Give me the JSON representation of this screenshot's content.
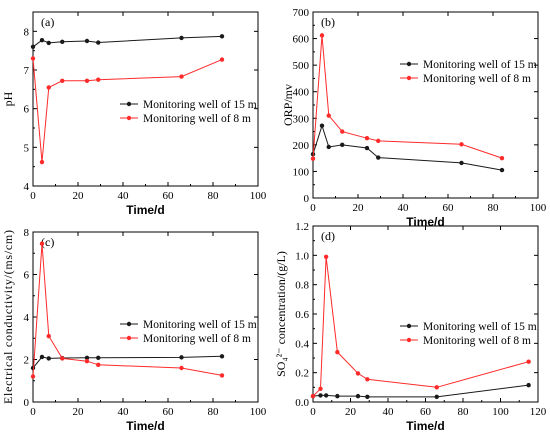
{
  "series_colors": {
    "s15": "#1a1a1a",
    "s8": "#ff2a2a"
  },
  "chart_data": [
    {
      "type": "line",
      "panel_label": "(a)",
      "xlabel": "Time/d",
      "ylabel": "pH",
      "xlim": [
        0,
        100
      ],
      "ylim": [
        4,
        8.5
      ],
      "xticks": [
        0,
        20,
        40,
        60,
        80,
        100
      ],
      "yticks": [
        4,
        5,
        6,
        7,
        8
      ],
      "legend_position": "center-right",
      "series": [
        {
          "name": "Monitoring well of 15 m",
          "x": [
            0,
            4,
            7,
            13,
            24,
            29,
            66,
            84
          ],
          "y": [
            7.6,
            7.77,
            7.7,
            7.73,
            7.75,
            7.71,
            7.83,
            7.87
          ]
        },
        {
          "name": "Monitoring well of 8 m",
          "x": [
            0,
            4,
            7,
            13,
            24,
            29,
            66,
            84
          ],
          "y": [
            7.3,
            4.62,
            6.55,
            6.72,
            6.72,
            6.75,
            6.83,
            7.27
          ]
        }
      ]
    },
    {
      "type": "line",
      "panel_label": "(b)",
      "xlabel": "Time/d",
      "ylabel": "ORP/mv",
      "xlim": [
        0,
        100
      ],
      "ylim": [
        0,
        700
      ],
      "xticks": [
        0,
        20,
        40,
        60,
        80,
        100
      ],
      "yticks": [
        0,
        100,
        200,
        300,
        400,
        500,
        600,
        700
      ],
      "legend_position": "top-right",
      "series": [
        {
          "name": "Monitoring well of 15 m",
          "x": [
            0,
            4,
            7,
            13,
            24,
            29,
            66,
            84
          ],
          "y": [
            165,
            272,
            192,
            200,
            188,
            152,
            132,
            105
          ]
        },
        {
          "name": "Monitoring well of 8 m",
          "x": [
            0,
            4,
            7,
            13,
            24,
            29,
            66,
            84
          ],
          "y": [
            148,
            612,
            310,
            250,
            225,
            215,
            202,
            150
          ]
        }
      ]
    },
    {
      "type": "line",
      "panel_label": "(c)",
      "xlabel": "Time/d",
      "ylabel": "Electrical conductivity/(ms/cm)",
      "xlim": [
        0,
        100
      ],
      "ylim": [
        0,
        8
      ],
      "xticks": [
        0,
        20,
        40,
        60,
        80,
        100
      ],
      "yticks": [
        0,
        2,
        4,
        6,
        8
      ],
      "legend_position": "center-right",
      "series": [
        {
          "name": "Monitoring well of 15 m",
          "x": [
            0,
            4,
            7,
            13,
            24,
            29,
            66,
            84
          ],
          "y": [
            1.6,
            2.12,
            2.05,
            2.07,
            2.08,
            2.08,
            2.1,
            2.15
          ]
        },
        {
          "name": "Monitoring well of 8 m",
          "x": [
            0,
            4,
            7,
            13,
            24,
            29,
            66,
            84
          ],
          "y": [
            1.2,
            7.45,
            3.1,
            2.05,
            1.92,
            1.75,
            1.6,
            1.25
          ]
        }
      ]
    },
    {
      "type": "line",
      "panel_label": "(d)",
      "xlabel": "Time/d",
      "ylabel": "SO₄²⁻ concentration/(g/L)",
      "xlim": [
        0,
        120
      ],
      "ylim": [
        0,
        1.2
      ],
      "xticks": [
        0,
        20,
        40,
        60,
        80,
        100,
        120
      ],
      "yticks": [
        0.0,
        0.2,
        0.4,
        0.6,
        0.8,
        1.0,
        1.2
      ],
      "legend_position": "center-right",
      "series": [
        {
          "name": "Monitoring well of 15 m",
          "x": [
            0,
            4,
            7,
            13,
            24,
            29,
            66,
            115
          ],
          "y": [
            0.04,
            0.045,
            0.045,
            0.04,
            0.04,
            0.035,
            0.035,
            0.115
          ]
        },
        {
          "name": "Monitoring well of 8 m",
          "x": [
            0,
            4,
            7,
            13,
            24,
            29,
            66,
            115
          ],
          "y": [
            0.04,
            0.09,
            0.99,
            0.34,
            0.195,
            0.155,
            0.1,
            0.275
          ]
        }
      ]
    }
  ]
}
